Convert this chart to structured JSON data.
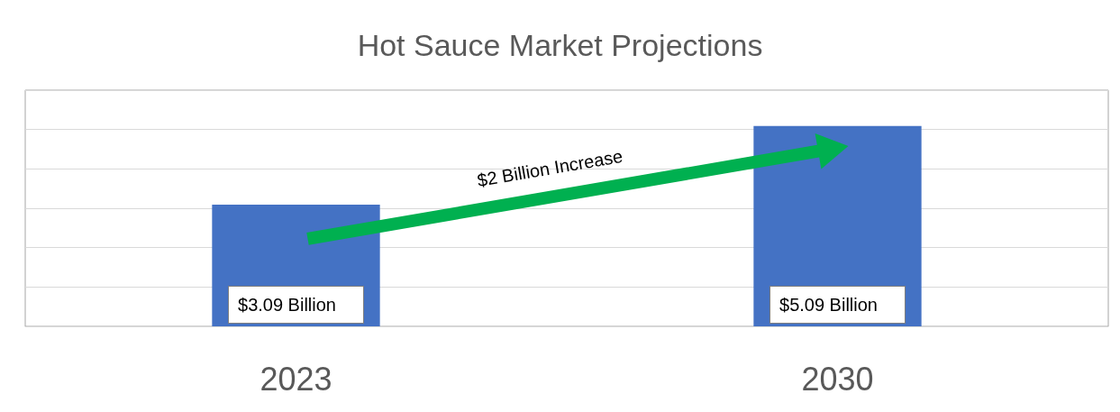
{
  "chart_data": {
    "type": "bar",
    "title": "Hot Sauce Market Projections",
    "categories": [
      "2023",
      "2030"
    ],
    "values": [
      3.09,
      5.09
    ],
    "value_labels": [
      "$3.09 Billion",
      "$5.09 Billion"
    ],
    "color": "#4472c4",
    "ylim": [
      0,
      6
    ],
    "yticks": [
      {
        "value": 0,
        "label": null
      },
      {
        "value": 1,
        "label": null
      },
      {
        "value": 2,
        "label": null
      },
      {
        "value": 3,
        "label": null
      },
      {
        "value": 4,
        "label": null
      },
      {
        "value": 5,
        "label": null
      },
      {
        "value": 6,
        "label": null
      }
    ],
    "grid": "y",
    "tick_labels": "x",
    "annotations": [
      "$2 Billion Increase"
    ]
  }
}
